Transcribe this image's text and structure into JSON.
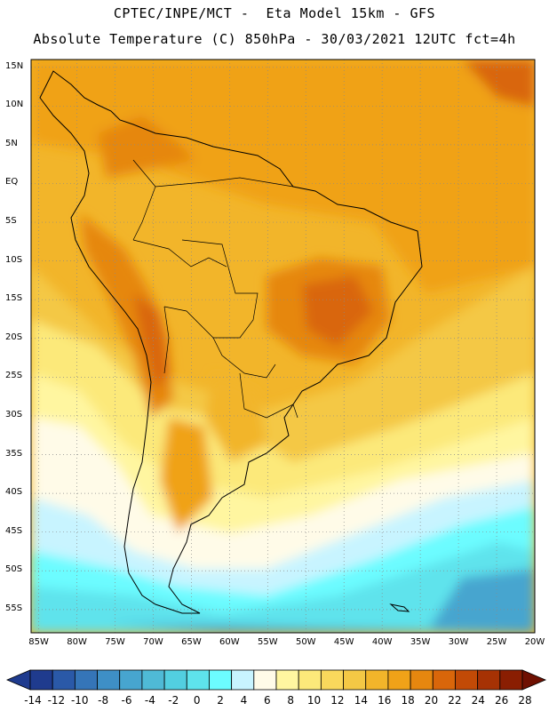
{
  "header": {
    "title_line1": "CPTEC/INPE/MCT -  Eta Model 15km - GFS",
    "title_line2": "Absolute Temperature (C) 850hPa - 30/03/2021 12UTC fct=4h"
  },
  "axes": {
    "lat_labels": [
      "15N",
      "10N",
      "5N",
      "EQ",
      "5S",
      "10S",
      "15S",
      "20S",
      "25S",
      "30S",
      "35S",
      "40S",
      "45S",
      "50S",
      "55S"
    ],
    "lon_labels": [
      "85W",
      "80W",
      "75W",
      "70W",
      "65W",
      "60W",
      "55W",
      "50W",
      "45W",
      "40W",
      "35W",
      "30W",
      "25W",
      "20W"
    ],
    "lat_range": [
      -58,
      16
    ],
    "lon_range": [
      -86,
      -20
    ],
    "grid": "dotted"
  },
  "colorbar": {
    "labels": [
      "-14",
      "-12",
      "-10",
      "-8",
      "-6",
      "-4",
      "-2",
      "0",
      "2",
      "4",
      "6",
      "8",
      "10",
      "12",
      "14",
      "16",
      "18",
      "20",
      "22",
      "24",
      "26",
      "28"
    ],
    "colors": [
      "#1f3b8e",
      "#2a59a8",
      "#3575b8",
      "#3e8fc6",
      "#47a5cf",
      "#4fbad6",
      "#52cfe0",
      "#5ee3ec",
      "#6cfcff",
      "#c8f4ff",
      "#fffbe8",
      "#fff6a0",
      "#fce97a",
      "#f9d85c",
      "#f4c845",
      "#f2b52a",
      "#f0a218",
      "#e6870f",
      "#d9660a",
      "#c24a06",
      "#a63204",
      "#8a1e02",
      "#6f1001"
    ],
    "min": -14,
    "max": 28
  },
  "legend": {
    "placement": "bottom"
  }
}
